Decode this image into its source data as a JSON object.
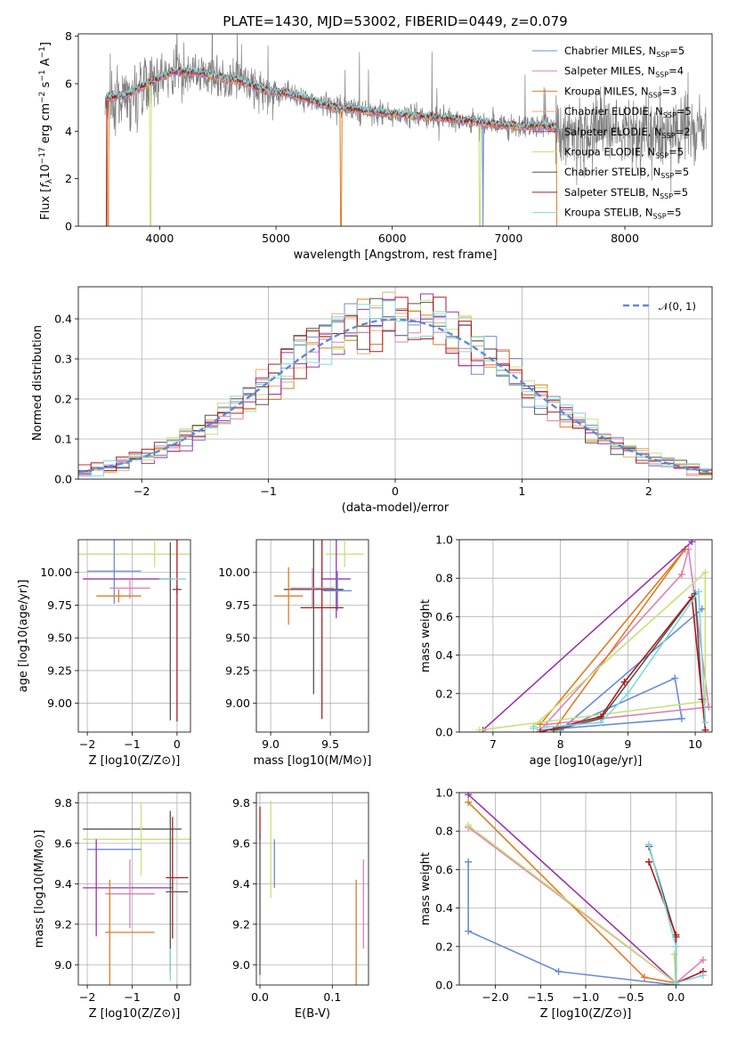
{
  "page": {
    "title": "PLATE=1430, MJD=53002, FIBERID=0449, z=0.079"
  },
  "colors": {
    "Chabrier MILES": "#6a8cd6",
    "Salpeter MILES": "#e07fb4",
    "Kroupa MILES": "#e07b22",
    "Chabrier ELODIE": "#e2ad7c",
    "Salpeter ELODIE": "#9b32b1",
    "Kroupa ELODIE": "#c8e079",
    "Chabrier STELIB": "#555555",
    "Salpeter STELIB": "#b01a1a",
    "Kroupa STELIB": "#7fd7dd",
    "data": "#808080",
    "gauss": "#5b8bd6"
  },
  "chart_data": [
    {
      "id": "spectrum",
      "type": "line",
      "title": "PLATE=1430, MJD=53002, FIBERID=0449, z=0.079",
      "xlabel": "wavelength [Angstrom, rest frame]",
      "ylabel": "Flux [f_λ 10^-17 erg cm^-2 s^-1 A^-1]",
      "xlim": [
        3300,
        8750
      ],
      "ylim": [
        0,
        8.1
      ],
      "xticks": [
        4000,
        5000,
        6000,
        7000,
        8000
      ],
      "yticks": [
        0,
        2,
        4,
        6,
        8
      ],
      "grid": false,
      "legend_position": "top-right",
      "legend": [
        {
          "label": "Chabrier MILES, N_SSP=5"
        },
        {
          "label": "Salpeter MILES, N_SSP=4"
        },
        {
          "label": "Kroupa MILES, N_SSP=3"
        },
        {
          "label": "Chabrier ELODIE, N_SSP=5"
        },
        {
          "label": "Salpeter ELODIE, N_SSP=2"
        },
        {
          "label": "Kroupa ELODIE, N_SSP=5"
        },
        {
          "label": "Chabrier STELIB, N_SSP=5"
        },
        {
          "label": "Salpeter STELIB, N_SSP=5"
        },
        {
          "label": "Kroupa STELIB, N_SSP=5"
        }
      ],
      "continuum_points": [
        [
          3520,
          5.4
        ],
        [
          3700,
          5.5
        ],
        [
          3900,
          6.0
        ],
        [
          4100,
          6.5
        ],
        [
          4300,
          6.5
        ],
        [
          4500,
          6.3
        ],
        [
          4700,
          6.1
        ],
        [
          4900,
          5.7
        ],
        [
          5100,
          5.6
        ],
        [
          5300,
          5.3
        ],
        [
          5500,
          5.0
        ],
        [
          5700,
          4.9
        ],
        [
          5900,
          4.8
        ],
        [
          6100,
          4.7
        ],
        [
          6300,
          4.6
        ],
        [
          6500,
          4.55
        ],
        [
          6700,
          4.4
        ],
        [
          6900,
          4.3
        ],
        [
          7100,
          4.2
        ],
        [
          7300,
          4.25
        ],
        [
          7420,
          4.1
        ]
      ]
    },
    {
      "id": "residuals",
      "type": "step",
      "xlabel": "(data-model)/error",
      "ylabel": "Normed distribution",
      "xlim": [
        -2.5,
        2.5
      ],
      "ylim": [
        0,
        0.48
      ],
      "xticks": [
        -2,
        -1,
        0,
        1,
        2
      ],
      "yticks": [
        0.0,
        0.1,
        0.2,
        0.3,
        0.4
      ],
      "grid": true,
      "legend_position": "top-right",
      "legend": [
        {
          "label": "𝒩(0, 1)",
          "style": "dashed"
        }
      ],
      "bin_width": 0.1
    },
    {
      "id": "age_vs_Z",
      "type": "errorbar",
      "xlabel": "Z [log10(Z/Z⊙)]",
      "ylabel": "age  [log10(age/yr)]",
      "xlim": [
        -2.2,
        0.3
      ],
      "ylim": [
        8.78,
        10.25
      ],
      "xticks": [
        -2,
        -1,
        0
      ],
      "yticks": [
        9.0,
        9.25,
        9.5,
        9.75,
        10.0
      ],
      "grid": true,
      "points": [
        {
          "model": "Kroupa ELODIE",
          "x": -0.5,
          "xerr": 1.7,
          "y": 10.14,
          "yerr": 0.1
        },
        {
          "model": "Chabrier MILES",
          "x": -1.4,
          "xerr": 0.6,
          "y": 10.01,
          "yerr": 0.25
        },
        {
          "model": "Salpeter ELODIE",
          "x": -1.1,
          "xerr": 1.0,
          "y": 9.95,
          "yerr": 0.0
        },
        {
          "model": "Salpeter MILES",
          "x": -1.05,
          "xerr": 0.45,
          "y": 9.88,
          "yerr": 0.08
        },
        {
          "model": "Kroupa MILES",
          "x": -1.3,
          "xerr": 0.5,
          "y": 9.82,
          "yerr": 0.05
        },
        {
          "model": "Chabrier STELIB",
          "x": 0.0,
          "xerr": 0.1,
          "y": 9.87,
          "yerr": 0.03
        },
        {
          "model": "Salpeter STELIB",
          "x": 0.0,
          "xerr": 0.0,
          "y": 9.73,
          "yerr": 0.87
        },
        {
          "model": "Chabrier STELIB",
          "x": -0.15,
          "xerr": 0.0,
          "y": 9.55,
          "yerr": 0.68
        },
        {
          "model": "Kroupa STELIB",
          "x": -0.1,
          "xerr": 0.3,
          "y": 9.95,
          "yerr": 0.0
        }
      ]
    },
    {
      "id": "age_vs_mass",
      "type": "errorbar",
      "xlabel": "mass [log10(M/M⊙)]",
      "ylabel": "",
      "xlim": [
        8.88,
        9.82
      ],
      "ylim": [
        8.78,
        10.25
      ],
      "xticks": [
        9.0,
        9.5
      ],
      "yticks": [
        9.0,
        9.25,
        9.5,
        9.75,
        10.0
      ],
      "grid": true,
      "points": [
        {
          "model": "Kroupa ELODIE",
          "x": 9.62,
          "xerr": 0.16,
          "y": 10.14,
          "yerr": 0.1
        },
        {
          "model": "Salpeter ELODIE",
          "x": 9.55,
          "xerr": 0.12,
          "y": 9.95,
          "yerr": 0.3
        },
        {
          "model": "Chabrier MILES",
          "x": 9.56,
          "xerr": 0.12,
          "y": 9.86,
          "yerr": 0.15
        },
        {
          "model": "Chabrier STELIB",
          "x": 9.36,
          "xerr": 0.25,
          "y": 9.87,
          "yerr": 0.8
        },
        {
          "model": "Kroupa MILES",
          "x": 9.15,
          "xerr": 0.12,
          "y": 9.82,
          "yerr": 0.22
        },
        {
          "model": "Salpeter STELIB",
          "x": 9.43,
          "xerr": 0.18,
          "y": 9.73,
          "yerr": 0.85
        },
        {
          "model": "Salpeter MILES",
          "x": 9.35,
          "xerr": 0.18,
          "y": 9.88,
          "yerr": 0.15
        },
        {
          "model": "Kroupa STELIB",
          "x": 9.4,
          "xerr": 0.0,
          "y": 10.0,
          "yerr": 0.0
        }
      ]
    },
    {
      "id": "weight_vs_age",
      "type": "line",
      "xlabel": "age  [log10(age/yr)]",
      "ylabel": "mass weight",
      "xlim": [
        6.5,
        10.25
      ],
      "ylim": [
        0,
        1.0
      ],
      "xticks": [
        7,
        8,
        9,
        10
      ],
      "yticks": [
        0.0,
        0.2,
        0.4,
        0.6,
        0.8,
        1.0
      ],
      "grid": true,
      "series": [
        {
          "model": "Chabrier MILES",
          "points": [
            [
              7.7,
              0.01
            ],
            [
              9.8,
              0.07
            ],
            [
              9.7,
              0.28
            ],
            [
              8.0,
              0.01
            ],
            [
              10.1,
              0.64
            ]
          ]
        },
        {
          "model": "Salpeter MILES",
          "points": [
            [
              7.7,
              0.01
            ],
            [
              9.8,
              0.82
            ],
            [
              9.9,
              0.95
            ],
            [
              10.2,
              0.13
            ],
            [
              7.8,
              0.04
            ]
          ]
        },
        {
          "model": "Kroupa MILES",
          "points": [
            [
              7.7,
              0.04
            ],
            [
              9.85,
              0.95
            ],
            [
              7.9,
              0.01
            ]
          ]
        },
        {
          "model": "Salpeter ELODIE",
          "points": [
            [
              6.85,
              0.01
            ],
            [
              9.95,
              0.99
            ]
          ]
        },
        {
          "model": "Kroupa ELODIE",
          "points": [
            [
              6.8,
              0.01
            ],
            [
              10.15,
              0.16
            ],
            [
              10.15,
              0.83
            ],
            [
              7.6,
              0.03
            ]
          ]
        },
        {
          "model": "Chabrier STELIB",
          "points": [
            [
              7.9,
              0.01
            ],
            [
              8.6,
              0.07
            ],
            [
              10.0,
              0.72
            ],
            [
              10.1,
              0.17
            ]
          ]
        },
        {
          "model": "Salpeter STELIB",
          "points": [
            [
              7.7,
              0.0
            ],
            [
              8.6,
              0.08
            ],
            [
              8.95,
              0.26
            ],
            [
              9.95,
              0.7
            ],
            [
              10.15,
              0.01
            ]
          ]
        },
        {
          "model": "Kroupa STELIB",
          "points": [
            [
              7.6,
              0.02
            ],
            [
              8.6,
              0.05
            ],
            [
              9.0,
              0.2
            ],
            [
              10.05,
              0.73
            ],
            [
              10.15,
              0.05
            ]
          ]
        }
      ]
    },
    {
      "id": "mass_vs_Z",
      "type": "errorbar",
      "xlabel": "Z [log10(Z/Z⊙)]",
      "ylabel": "mass [log10(M/M⊙)]",
      "xlim": [
        -2.2,
        0.3
      ],
      "ylim": [
        8.9,
        9.85
      ],
      "xticks": [
        -2,
        -1,
        0
      ],
      "yticks": [
        9.0,
        9.2,
        9.4,
        9.6,
        9.8
      ],
      "grid": true,
      "points": [
        {
          "model": "Chabrier STELIB",
          "x": -1.0,
          "xerr": 1.1,
          "y": 9.67,
          "yerr": 0.0
        },
        {
          "model": "Kroupa ELODIE",
          "x": -0.8,
          "xerr": 1.3,
          "y": 9.62,
          "yerr": 0.18
        },
        {
          "model": "Chabrier MILES",
          "x": -1.4,
          "xerr": 0.6,
          "y": 9.57,
          "yerr": 0.0
        },
        {
          "model": "Salpeter ELODIE",
          "x": -1.8,
          "xerr": 0.0,
          "y": 9.38,
          "yerr": 0.24
        },
        {
          "model": "Salpeter ELODIE",
          "x": -1.1,
          "xerr": 1.0,
          "y": 9.38,
          "yerr": 0.0
        },
        {
          "model": "Salpeter MILES",
          "x": -1.05,
          "xerr": 0.55,
          "y": 9.35,
          "yerr": 0.17
        },
        {
          "model": "Kroupa MILES",
          "x": -1.05,
          "xerr": 0.55,
          "y": 9.16,
          "yerr": 0.0
        },
        {
          "model": "Kroupa MILES",
          "x": -1.5,
          "xerr": 0.0,
          "y": 9.16,
          "yerr": 0.26
        },
        {
          "model": "Salpeter STELIB",
          "x": -0.1,
          "xerr": 0.0,
          "y": 9.43,
          "yerr": 0.3
        },
        {
          "model": "Salpeter STELIB",
          "x": 0.0,
          "xerr": 0.25,
          "y": 9.43,
          "yerr": 0.0
        },
        {
          "model": "Chabrier STELIB",
          "x": 0.0,
          "xerr": 0.25,
          "y": 9.36,
          "yerr": 0.0
        },
        {
          "model": "Chabrier STELIB",
          "x": -0.15,
          "xerr": 0.0,
          "y": 9.36,
          "yerr": 0.4
        },
        {
          "model": "Kroupa STELIB",
          "x": -0.15,
          "xerr": 0.0,
          "y": 9.0,
          "yerr": 0.08
        }
      ]
    },
    {
      "id": "mass_vs_EBV",
      "type": "errorbar",
      "xlabel": "E(B-V)",
      "ylabel": "",
      "xlim": [
        -0.005,
        0.15
      ],
      "ylim": [
        8.9,
        9.85
      ],
      "xticks": [
        0.0,
        0.1
      ],
      "yticks": [
        9.0,
        9.2,
        9.4,
        9.6,
        9.8
      ],
      "grid": true,
      "points": [
        {
          "model": "Salpeter STELIB",
          "x": 0.0,
          "xerr": 0.0,
          "y": 9.7,
          "yerr": 0.08
        },
        {
          "model": "Chabrier STELIB",
          "x": 0.0,
          "xerr": 0.0,
          "y": 9.3,
          "yerr": 0.35
        },
        {
          "model": "Kroupa ELODIE",
          "x": 0.015,
          "xerr": 0.0,
          "y": 9.57,
          "yerr": 0.24
        },
        {
          "model": "Chabrier MILES",
          "x": 0.02,
          "xerr": 0.0,
          "y": 9.5,
          "yerr": 0.12
        },
        {
          "model": "Kroupa MILES",
          "x": 0.133,
          "xerr": 0.0,
          "y": 9.16,
          "yerr": 0.26
        },
        {
          "model": "Salpeter MILES",
          "x": 0.143,
          "xerr": 0.0,
          "y": 9.3,
          "yerr": 0.22
        }
      ]
    },
    {
      "id": "weight_vs_Z",
      "type": "line",
      "xlabel": "Z [log10(Z/Z⊙)]",
      "ylabel": "mass weight",
      "xlim": [
        -2.4,
        0.4
      ],
      "ylim": [
        0,
        1.0
      ],
      "xticks": [
        -2.0,
        -1.5,
        -1.0,
        -0.5,
        0.0
      ],
      "yticks": [
        0.0,
        0.2,
        0.4,
        0.6,
        0.8,
        1.0
      ],
      "grid": true,
      "series": [
        {
          "model": "Chabrier MILES",
          "points": [
            [
              -2.3,
              0.64
            ],
            [
              -2.3,
              0.28
            ],
            [
              -1.3,
              0.07
            ],
            [
              0.0,
              0.0
            ]
          ]
        },
        {
          "model": "Salpeter MILES",
          "points": [
            [
              -2.3,
              0.82
            ],
            [
              0.0,
              0.01
            ],
            [
              0.3,
              0.13
            ]
          ]
        },
        {
          "model": "Kroupa MILES",
          "points": [
            [
              -2.3,
              0.95
            ],
            [
              -0.35,
              0.04
            ],
            [
              0.0,
              0.01
            ]
          ]
        },
        {
          "model": "Salpeter ELODIE",
          "points": [
            [
              -2.3,
              0.99
            ],
            [
              0.0,
              0.01
            ]
          ]
        },
        {
          "model": "Kroupa ELODIE",
          "points": [
            [
              -2.3,
              0.83
            ],
            [
              0.0,
              0.01
            ],
            [
              -0.02,
              0.16
            ]
          ]
        },
        {
          "model": "Chabrier STELIB",
          "points": [
            [
              -0.3,
              0.72
            ],
            [
              0.0,
              0.25
            ],
            [
              0.0,
              0.01
            ]
          ]
        },
        {
          "model": "Salpeter STELIB",
          "points": [
            [
              -0.3,
              0.64
            ],
            [
              0.0,
              0.26
            ],
            [
              0.0,
              0.01
            ],
            [
              0.3,
              0.07
            ]
          ]
        },
        {
          "model": "Kroupa STELIB",
          "points": [
            [
              -0.3,
              0.73
            ],
            [
              0.0,
              0.2
            ],
            [
              0.0,
              0.01
            ],
            [
              0.3,
              0.05
            ]
          ]
        }
      ]
    }
  ]
}
